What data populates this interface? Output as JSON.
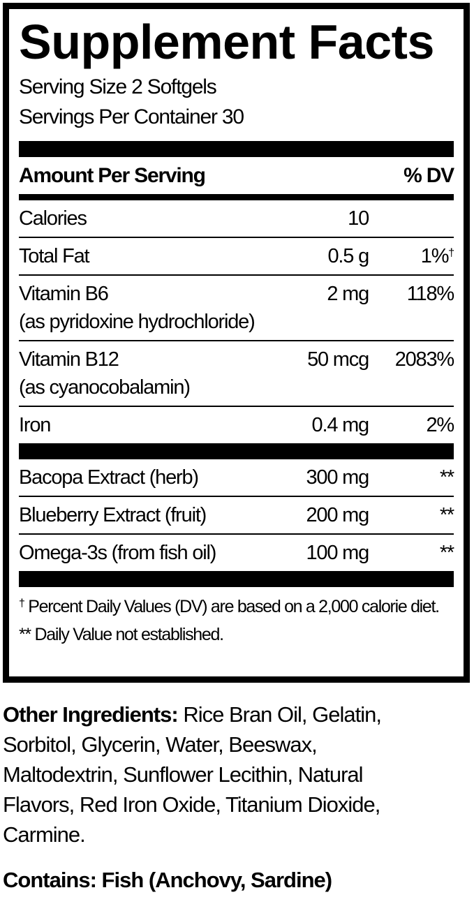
{
  "title": "Supplement Facts",
  "serving_size": "Serving Size 2 Softgels",
  "servings_per_container": "Servings Per Container 30",
  "header": {
    "amount": "Amount Per Serving",
    "dv": "% DV"
  },
  "nutrients": [
    {
      "name": "Calories",
      "sub": "",
      "amount": "10",
      "dv": "",
      "mark": ""
    },
    {
      "name": "Total Fat",
      "sub": "",
      "amount": "0.5 g",
      "dv": "1%",
      "mark": "†"
    },
    {
      "name": "Vitamin B6",
      "sub": "(as pyridoxine hydrochloride)",
      "amount": "2 mg",
      "dv": "118%",
      "mark": ""
    },
    {
      "name": "Vitamin B12",
      "sub": "(as cyanocobalamin)",
      "amount": "50 mcg",
      "dv": "2083%",
      "mark": ""
    },
    {
      "name": "Iron",
      "sub": "",
      "amount": "0.4 mg",
      "dv": "2%",
      "mark": ""
    }
  ],
  "other_nutrients": [
    {
      "name": "Bacopa Extract (herb)",
      "amount": "300 mg",
      "dv": "**"
    },
    {
      "name": "Blueberry Extract (fruit)",
      "amount": "200 mg",
      "dv": "**"
    },
    {
      "name": "Omega-3s (from fish oil)",
      "amount": "100 mg",
      "dv": "**"
    }
  ],
  "footnotes": {
    "dagger": "†",
    "dv_basis": "Percent Daily Values (DV) are based on a 2,000 calorie diet.",
    "not_established": "** Daily Value not established."
  },
  "other_ingredients": {
    "label": "Other Ingredients:",
    "lines": [
      " Rice Bran Oil, Gelatin,",
      "Sorbitol, Glycerin, Water, Beeswax,",
      "Maltodextrin, Sunflower Lecithin, Natural",
      "Flavors, Red Iron Oxide, Titanium Dioxide,",
      "Carmine."
    ]
  },
  "contains": "Contains: Fish (Anchovy, Sardine)"
}
